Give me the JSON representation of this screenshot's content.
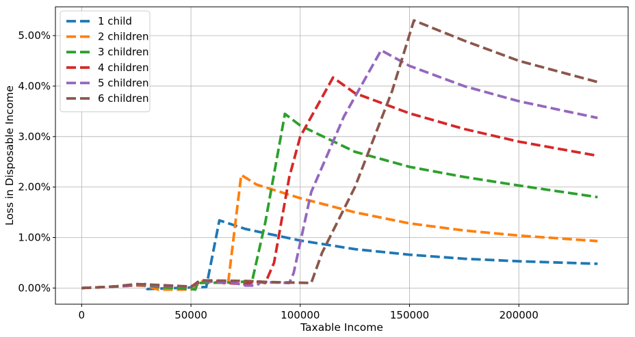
{
  "chart_data": {
    "type": "line",
    "xlabel": "Taxable Income",
    "ylabel": "Loss in Disposable Income",
    "xlim": [
      -12000,
      250000
    ],
    "ylim": [
      -0.0032,
      0.0557
    ],
    "xticks": [
      0,
      50000,
      100000,
      150000,
      200000
    ],
    "xtick_labels": [
      "0",
      "50000",
      "100000",
      "150000",
      "200000"
    ],
    "yticks": [
      0,
      0.01,
      0.02,
      0.03,
      0.04,
      0.05
    ],
    "ytick_labels": [
      "0.00%",
      "1.00%",
      "2.00%",
      "3.00%",
      "4.00%",
      "5.00%"
    ],
    "grid": true,
    "legend_position": "top-left",
    "line_style": "dashed",
    "series": [
      {
        "name": "1 child",
        "color": "#1f77b4",
        "points": [
          [
            0,
            0
          ],
          [
            15000,
            0.0003
          ],
          [
            25000,
            0.0005
          ],
          [
            29000,
            0.0008
          ],
          [
            30000,
            -0.0002
          ],
          [
            50000,
            0.0001
          ],
          [
            57000,
            0.0002
          ],
          [
            63000,
            0.0134
          ],
          [
            75000,
            0.0117
          ],
          [
            100000,
            0.0094
          ],
          [
            125000,
            0.0077
          ],
          [
            150000,
            0.0066
          ],
          [
            175000,
            0.0058
          ],
          [
            200000,
            0.0053
          ],
          [
            236000,
            0.0048
          ]
        ]
      },
      {
        "name": "2 children",
        "color": "#ff7f0e",
        "points": [
          [
            0,
            0
          ],
          [
            15000,
            0.0003
          ],
          [
            25000,
            0.0005
          ],
          [
            30000,
            0.0004
          ],
          [
            35000,
            -0.0003
          ],
          [
            50000,
            -0.0003
          ],
          [
            55000,
            0.0013
          ],
          [
            67000,
            0.001
          ],
          [
            73000,
            0.0224
          ],
          [
            80000,
            0.0205
          ],
          [
            100000,
            0.0178
          ],
          [
            125000,
            0.015
          ],
          [
            150000,
            0.0128
          ],
          [
            175000,
            0.0114
          ],
          [
            200000,
            0.0104
          ],
          [
            236000,
            0.0093
          ]
        ]
      },
      {
        "name": "3 children",
        "color": "#2ca02c",
        "points": [
          [
            0,
            0
          ],
          [
            15000,
            0.0003
          ],
          [
            25000,
            0.0006
          ],
          [
            30000,
            0.0005
          ],
          [
            35000,
            0.0002
          ],
          [
            50000,
            -0.0002
          ],
          [
            52000,
            -0.0003
          ],
          [
            53000,
            0.001
          ],
          [
            70000,
            0.0011
          ],
          [
            78000,
            0.0014
          ],
          [
            84000,
            0.013
          ],
          [
            93000,
            0.0345
          ],
          [
            100000,
            0.0322
          ],
          [
            125000,
            0.027
          ],
          [
            150000,
            0.024
          ],
          [
            175000,
            0.022
          ],
          [
            200000,
            0.0203
          ],
          [
            236000,
            0.018
          ]
        ]
      },
      {
        "name": "4 children",
        "color": "#d62728",
        "points": [
          [
            0,
            0
          ],
          [
            15000,
            0.0003
          ],
          [
            25000,
            0.0006
          ],
          [
            35000,
            0.0005
          ],
          [
            50000,
            0.0002
          ],
          [
            54000,
            0.0015
          ],
          [
            60000,
            0.0015
          ],
          [
            65000,
            0.001
          ],
          [
            75000,
            0.0008
          ],
          [
            80000,
            0.0013
          ],
          [
            84000,
            0.001
          ],
          [
            88000,
            0.005
          ],
          [
            95000,
            0.022
          ],
          [
            100000,
            0.03
          ],
          [
            115000,
            0.0417
          ],
          [
            125000,
            0.0386
          ],
          [
            150000,
            0.0346
          ],
          [
            175000,
            0.0315
          ],
          [
            200000,
            0.029
          ],
          [
            236000,
            0.0262
          ]
        ]
      },
      {
        "name": "5 children",
        "color": "#9467bd",
        "points": [
          [
            0,
            0
          ],
          [
            15000,
            0.0003
          ],
          [
            25000,
            0.0006
          ],
          [
            35000,
            0.0005
          ],
          [
            50000,
            0.0002
          ],
          [
            55000,
            0.0014
          ],
          [
            70000,
            0.001
          ],
          [
            75000,
            0.0005
          ],
          [
            80000,
            0.0005
          ],
          [
            82000,
            0.0012
          ],
          [
            95000,
            0.001
          ],
          [
            97000,
            0.003
          ],
          [
            105000,
            0.019
          ],
          [
            120000,
            0.034
          ],
          [
            137000,
            0.0471
          ],
          [
            150000,
            0.044
          ],
          [
            175000,
            0.04
          ],
          [
            200000,
            0.037
          ],
          [
            236000,
            0.0337
          ]
        ]
      },
      {
        "name": "6 children",
        "color": "#8c564b",
        "points": [
          [
            0,
            0
          ],
          [
            15000,
            0.0003
          ],
          [
            25000,
            0.0008
          ],
          [
            35000,
            0.0006
          ],
          [
            50000,
            0.0003
          ],
          [
            55000,
            0.0015
          ],
          [
            75000,
            0.0014
          ],
          [
            85000,
            0.0012
          ],
          [
            105000,
            0.001
          ],
          [
            110000,
            0.007
          ],
          [
            125000,
            0.02
          ],
          [
            142000,
            0.039
          ],
          [
            152000,
            0.053
          ],
          [
            175000,
            0.049
          ],
          [
            200000,
            0.045
          ],
          [
            236000,
            0.0408
          ]
        ]
      }
    ]
  }
}
